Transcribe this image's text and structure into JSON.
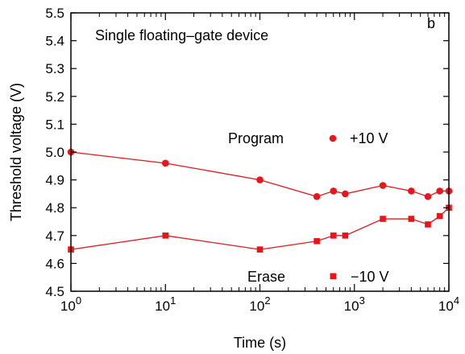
{
  "chart_data": {
    "type": "line",
    "title": "Single floating–gate device",
    "panel_label": "b",
    "xlabel": "Time (s)",
    "ylabel": "Threshold voltage (V)",
    "xscale": "log",
    "xlim": [
      1,
      10000
    ],
    "ylim": [
      4.5,
      5.5
    ],
    "x_ticks": [
      {
        "value": 1,
        "base": "10",
        "exp": "0"
      },
      {
        "value": 10,
        "base": "10",
        "exp": "1"
      },
      {
        "value": 100,
        "base": "10",
        "exp": "2"
      },
      {
        "value": 1000,
        "base": "10",
        "exp": "3"
      },
      {
        "value": 10000,
        "base": "10",
        "exp": "4"
      }
    ],
    "y_ticks": [
      "4.5",
      "4.6",
      "4.7",
      "4.8",
      "4.9",
      "5.0",
      "5.1",
      "5.2",
      "5.3",
      "5.4",
      "5.5"
    ],
    "grid": false,
    "legend_position": "inline",
    "color": "#e8161b",
    "series": [
      {
        "name": "Program",
        "legend_label": "+10 V",
        "marker": "circle",
        "x": [
          1,
          10,
          100,
          400,
          600,
          800,
          2000,
          4000,
          6000,
          8000,
          10000
        ],
        "y": [
          5.0,
          4.96,
          4.9,
          4.84,
          4.86,
          4.85,
          4.88,
          4.86,
          4.84,
          4.86,
          4.86
        ]
      },
      {
        "name": "Erase",
        "legend_label": "−10 V",
        "marker": "square",
        "x": [
          1,
          10,
          100,
          400,
          600,
          800,
          2000,
          4000,
          6000,
          8000,
          10000
        ],
        "y": [
          4.65,
          4.7,
          4.65,
          4.68,
          4.7,
          4.7,
          4.76,
          4.76,
          4.74,
          4.77,
          4.8
        ]
      }
    ]
  }
}
